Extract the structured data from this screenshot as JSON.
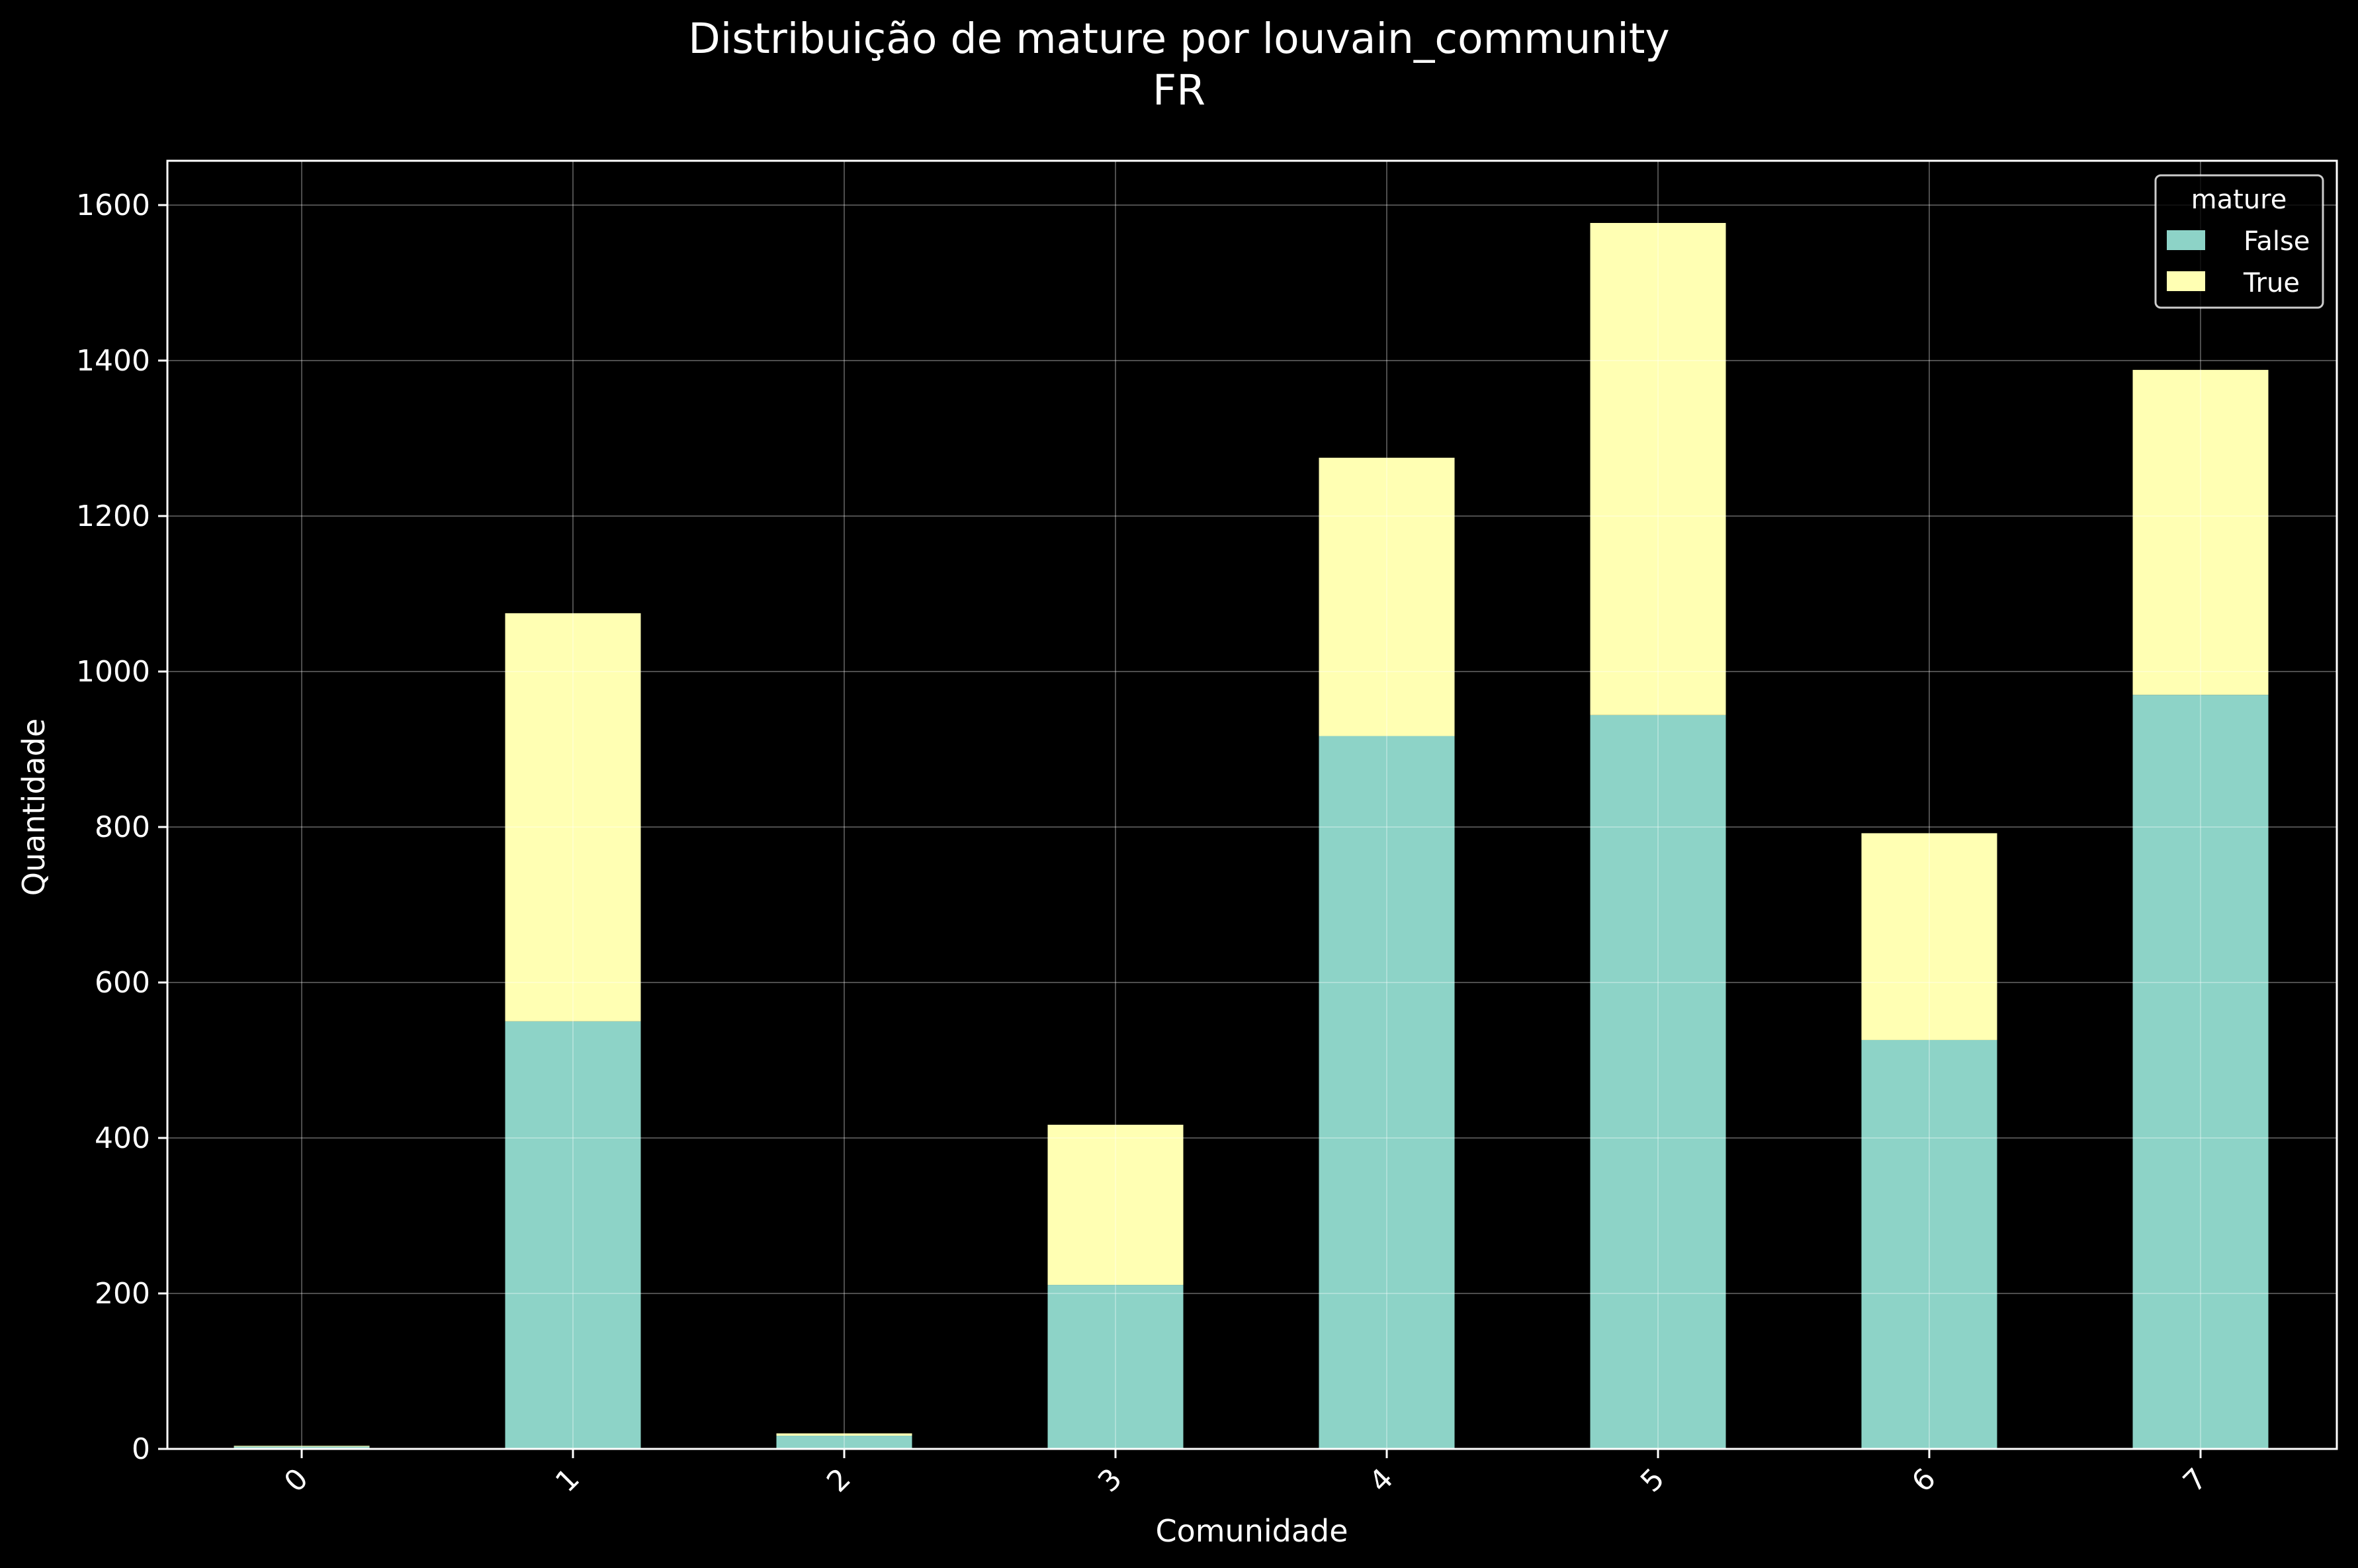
{
  "chart_data": {
    "type": "bar",
    "stacked": true,
    "title": "Distribuição de mature por louvain_community",
    "subtitle": "FR",
    "xlabel": "Comunidade",
    "ylabel": "Quantidade",
    "categories": [
      "0",
      "1",
      "2",
      "3",
      "4",
      "5",
      "6",
      "7"
    ],
    "series": [
      {
        "name": "False",
        "color": "#8dd3c7",
        "values": [
          3,
          550,
          17,
          211,
          917,
          944,
          526,
          970
        ]
      },
      {
        "name": "True",
        "color": "#ffffb3",
        "values": [
          1,
          525,
          3,
          206,
          358,
          633,
          266,
          418
        ]
      }
    ],
    "ylim": [
      0,
      1657
    ],
    "yticks": [
      0,
      200,
      400,
      600,
      800,
      1000,
      1200,
      1400,
      1600
    ],
    "grid": true,
    "legend": {
      "title": "mature",
      "placement": "top-right"
    },
    "xtick_rotation": -45,
    "colors": {
      "background": "#000000",
      "foreground": "#ffffff"
    }
  }
}
